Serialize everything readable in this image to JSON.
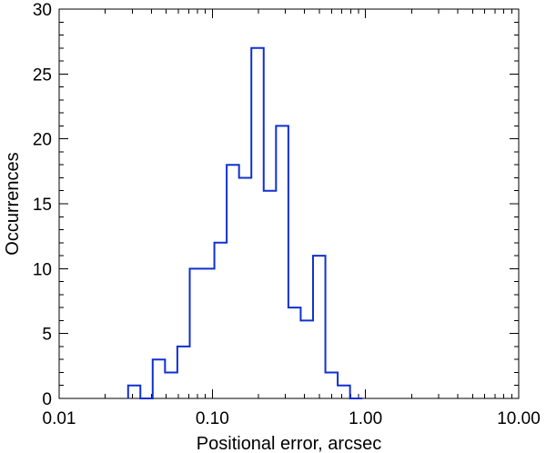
{
  "chart_data": {
    "type": "bar",
    "style": "step-histogram",
    "title": "",
    "xlabel": "Positional error, arcsec",
    "ylabel": "Occurrences",
    "x_scale": "log",
    "xlim": [
      0.01,
      10.0
    ],
    "ylim": [
      0,
      30
    ],
    "x_ticks": [
      {
        "value": 0.01,
        "label": "0.01"
      },
      {
        "value": 0.1,
        "label": "0.10"
      },
      {
        "value": 1.0,
        "label": "1.00"
      },
      {
        "value": 10.0,
        "label": "10.00"
      }
    ],
    "y_ticks": [
      {
        "value": 0,
        "label": "0"
      },
      {
        "value": 5,
        "label": "5"
      },
      {
        "value": 10,
        "label": "10"
      },
      {
        "value": 15,
        "label": "15"
      },
      {
        "value": 20,
        "label": "20"
      },
      {
        "value": 25,
        "label": "25"
      },
      {
        "value": 30,
        "label": "30"
      }
    ],
    "bin_edges": [
      0.0282,
      0.0339,
      0.0408,
      0.0491,
      0.0591,
      0.0712,
      0.0857,
      0.1031,
      0.1241,
      0.1494,
      0.1798,
      0.2164,
      0.2605,
      0.3136,
      0.3774,
      0.4543,
      0.5469,
      0.6582,
      0.7923,
      0.9537
    ],
    "values": [
      1,
      0,
      3,
      2,
      4,
      10,
      10,
      12,
      18,
      17,
      27,
      16,
      21,
      7,
      6,
      11,
      2,
      1,
      0
    ],
    "color": "#1030d0",
    "grid": false,
    "legend": "none"
  }
}
